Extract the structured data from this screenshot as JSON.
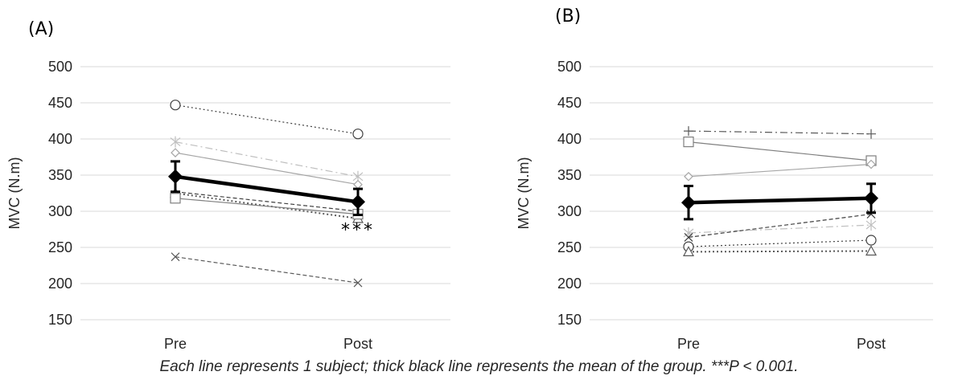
{
  "caption": "Each line represents 1 subject; thick black line represents the mean of the group. ***P < 0.001.",
  "chart_data": [
    {
      "type": "line",
      "panel_label": "(A)",
      "ylabel": "MVC (N.m)",
      "categories": [
        "Pre",
        "Post"
      ],
      "ylim": [
        150,
        500
      ],
      "yticks": [
        150,
        200,
        250,
        300,
        350,
        400,
        450,
        500
      ],
      "grid": true,
      "annotation": "***",
      "subjects": [
        {
          "values": [
            447,
            407
          ],
          "marker": "circle",
          "dash": "dotted",
          "color": "#404040"
        },
        {
          "values": [
            396,
            348
          ],
          "marker": "asterisk",
          "dash": "dashdot",
          "color": "#bfbfbf"
        },
        {
          "values": [
            381,
            337
          ],
          "marker": "diamond",
          "dash": "solid",
          "color": "#a6a6a6"
        },
        {
          "values": [
            327,
            300
          ],
          "marker": "none",
          "dash": "dashed",
          "color": "#404040"
        },
        {
          "values": [
            325,
            290
          ],
          "marker": "triangle",
          "dash": "dotted",
          "color": "#595959"
        },
        {
          "values": [
            318,
            296
          ],
          "marker": "square",
          "dash": "solid",
          "color": "#7f7f7f"
        },
        {
          "values": [
            237,
            201
          ],
          "marker": "cross",
          "dash": "dashed",
          "color": "#595959"
        }
      ],
      "mean": {
        "values": [
          348,
          313
        ],
        "error": [
          21,
          18
        ]
      }
    },
    {
      "type": "line",
      "panel_label": "(B)",
      "ylabel": "MVC (N.m)",
      "categories": [
        "Pre",
        "Post"
      ],
      "ylim": [
        150,
        500
      ],
      "yticks": [
        150,
        200,
        250,
        300,
        350,
        400,
        450,
        500
      ],
      "grid": true,
      "annotation": "",
      "subjects": [
        {
          "values": [
            411,
            407
          ],
          "marker": "plus",
          "dash": "dashdot",
          "color": "#595959"
        },
        {
          "values": [
            396,
            370
          ],
          "marker": "square",
          "dash": "solid",
          "color": "#7f7f7f"
        },
        {
          "values": [
            348,
            365
          ],
          "marker": "diamond",
          "dash": "solid",
          "color": "#a6a6a6"
        },
        {
          "values": [
            270,
            281
          ],
          "marker": "asterisk",
          "dash": "dashdot",
          "color": "#bfbfbf"
        },
        {
          "values": [
            264,
            296
          ],
          "marker": "cross",
          "dash": "dashed",
          "color": "#404040"
        },
        {
          "values": [
            251,
            260
          ],
          "marker": "circle",
          "dash": "dotted",
          "color": "#404040"
        },
        {
          "values": [
            244,
            245
          ],
          "marker": "triangle",
          "dash": "dotted",
          "color": "#595959"
        }
      ],
      "mean": {
        "values": [
          312,
          318
        ],
        "error": [
          23,
          20
        ]
      }
    }
  ]
}
